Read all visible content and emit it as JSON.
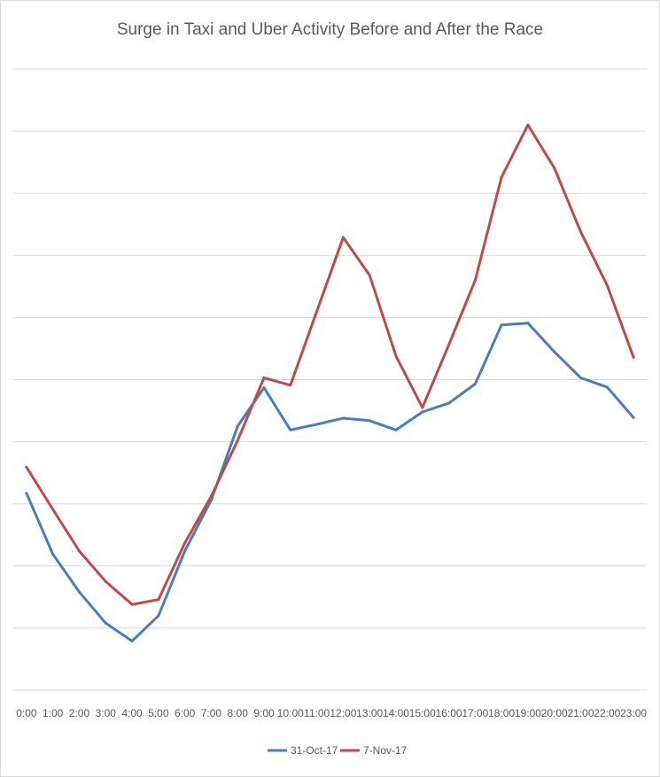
{
  "chart_data": {
    "type": "line",
    "title": "Surge in Taxi and Uber Activity Before and After the Race",
    "xlabel": "",
    "ylabel": "",
    "categories": [
      "0:00",
      "1:00",
      "2:00",
      "3:00",
      "4:00",
      "5:00",
      "6:00",
      "7:00",
      "8:00",
      "9:00",
      "10:00",
      "11:00",
      "12:00",
      "13:00",
      "14:00",
      "15:00",
      "16:00",
      "17:00",
      "18:00",
      "19:00",
      "20:00",
      "21:00",
      "22:00",
      "23:00"
    ],
    "ylim": [
      0,
      10
    ],
    "grid": true,
    "y_tick_labels_shown": false,
    "legend_position": "bottom",
    "series": [
      {
        "name": "31-Oct-17",
        "color": "#4a7ebb",
        "values": [
          3.17,
          2.19,
          1.58,
          1.08,
          0.79,
          1.2,
          2.24,
          3.06,
          4.25,
          4.87,
          4.19,
          4.28,
          4.38,
          4.34,
          4.19,
          4.48,
          4.62,
          4.93,
          5.88,
          5.91,
          5.45,
          5.03,
          4.88,
          4.39
        ]
      },
      {
        "name": "7-Nov-17",
        "color": "#be4b48",
        "values": [
          3.59,
          2.91,
          2.24,
          1.75,
          1.38,
          1.46,
          2.37,
          3.12,
          4.02,
          5.03,
          4.91,
          6.1,
          7.29,
          6.68,
          5.38,
          4.55,
          5.56,
          6.6,
          8.26,
          9.1,
          8.41,
          7.38,
          6.52,
          5.36
        ]
      }
    ]
  }
}
